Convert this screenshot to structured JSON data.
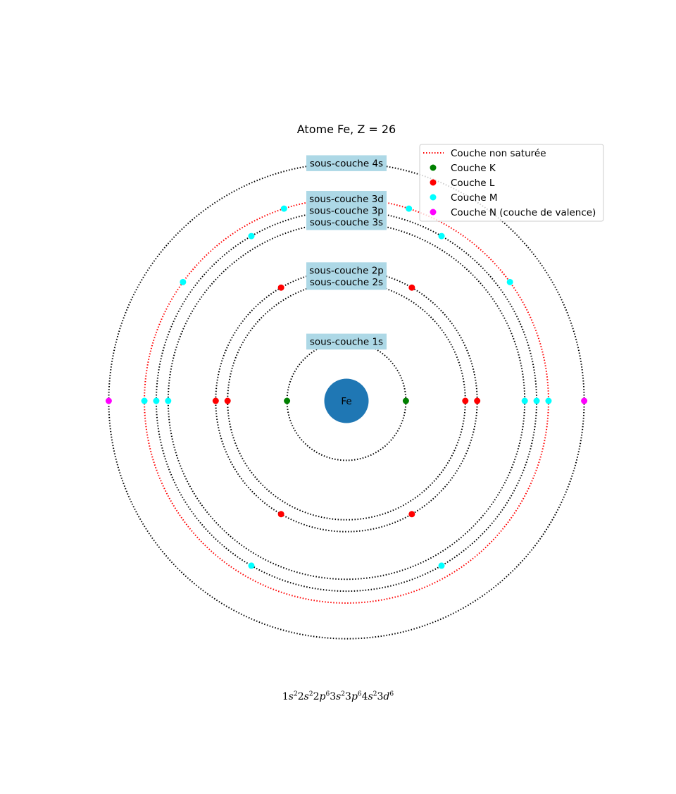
{
  "title": "Atome Fe, Z = 26",
  "nucleus": {
    "symbol": "Fe",
    "color": "#1f77b4"
  },
  "colors": {
    "saturated_shell": "#000000",
    "unsaturated_shell": "#ff0000",
    "label_box": "#add8e6",
    "K": "#008000",
    "L": "#ff0000",
    "M": "#00ffff",
    "N": "#ff00ff"
  },
  "subshells": [
    {
      "name": "1s",
      "radius": 1,
      "shell": "K",
      "electrons": 2,
      "capacity": 2,
      "saturated": true,
      "electron_angles_deg": [
        0,
        180
      ]
    },
    {
      "name": "2s",
      "radius": 2,
      "shell": "L",
      "electrons": 2,
      "capacity": 2,
      "saturated": true,
      "electron_angles_deg": [
        0,
        180
      ]
    },
    {
      "name": "2p",
      "radius": 2.2,
      "shell": "L",
      "electrons": 6,
      "capacity": 6,
      "saturated": true,
      "electron_angles_deg": [
        0,
        60,
        120,
        180,
        240,
        300
      ]
    },
    {
      "name": "3s",
      "radius": 3,
      "shell": "M",
      "electrons": 2,
      "capacity": 2,
      "saturated": true,
      "electron_angles_deg": [
        0,
        180
      ]
    },
    {
      "name": "3p",
      "radius": 3.2,
      "shell": "M",
      "electrons": 6,
      "capacity": 6,
      "saturated": true,
      "electron_angles_deg": [
        0,
        60,
        120,
        180,
        240,
        300
      ]
    },
    {
      "name": "3d",
      "radius": 3.4,
      "shell": "M",
      "electrons": 6,
      "capacity": 10,
      "saturated": false,
      "electron_angles_deg": [
        0,
        36,
        72,
        108,
        144,
        180
      ]
    },
    {
      "name": "4s",
      "radius": 4,
      "shell": "N",
      "electrons": 2,
      "capacity": 2,
      "saturated": true,
      "electron_angles_deg": [
        0,
        180
      ]
    }
  ],
  "labels": [
    {
      "lines": [
        "sous-couche 1s"
      ],
      "anchor_radius": 1
    },
    {
      "lines": [
        "sous-couche 2p",
        "sous-couche 2s"
      ],
      "anchor_radius": 2.2
    },
    {
      "lines": [
        "sous-couche 3d",
        "sous-couche 3p",
        "sous-couche 3s"
      ],
      "anchor_radius": 3.4
    },
    {
      "lines": [
        "sous-couche 4s"
      ],
      "anchor_radius": 4
    }
  ],
  "legend": {
    "position": "upper right",
    "entries": [
      {
        "label": "Couche non saturée",
        "kind": "line",
        "color": "#ff0000"
      },
      {
        "label": "Couche K",
        "kind": "dot",
        "color": "#008000"
      },
      {
        "label": "Couche L",
        "kind": "dot",
        "color": "#ff0000"
      },
      {
        "label": "Couche M",
        "kind": "dot",
        "color": "#00ffff"
      },
      {
        "label": "Couche N (couche de valence)",
        "kind": "dot",
        "color": "#ff00ff"
      }
    ]
  },
  "configuration": [
    {
      "n": "1",
      "l": "s",
      "e": "2"
    },
    {
      "n": "2",
      "l": "s",
      "e": "2"
    },
    {
      "n": "2",
      "l": "p",
      "e": "6"
    },
    {
      "n": "3",
      "l": "s",
      "e": "2"
    },
    {
      "n": "3",
      "l": "p",
      "e": "6"
    },
    {
      "n": "4",
      "l": "s",
      "e": "2"
    },
    {
      "n": "3",
      "l": "d",
      "e": "6"
    }
  ]
}
